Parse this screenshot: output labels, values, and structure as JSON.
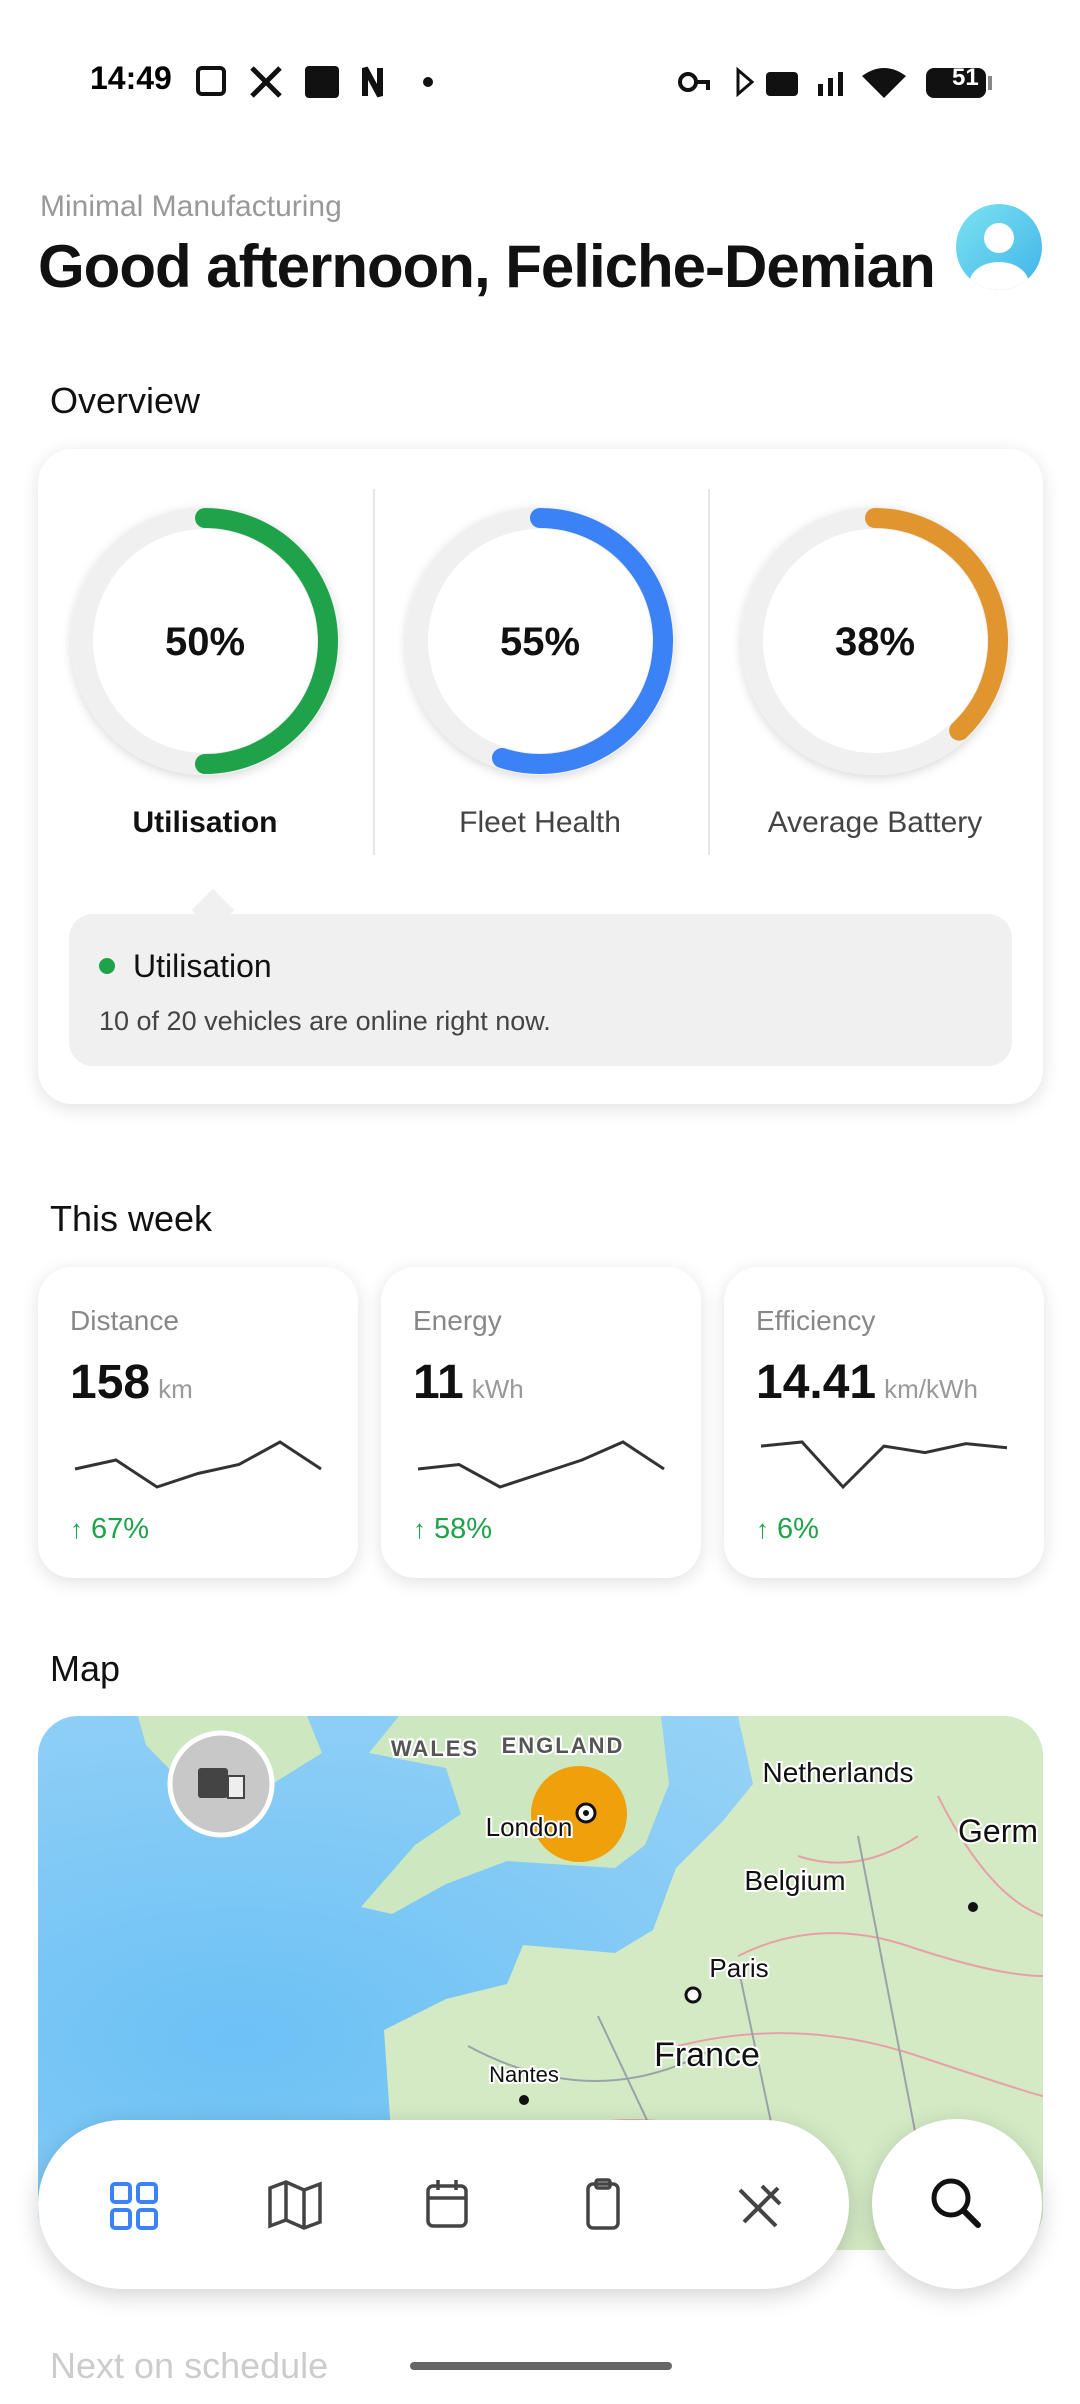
{
  "status_bar": {
    "time": "14:49",
    "battery": "51"
  },
  "header": {
    "org": "Minimal Manufacturing",
    "greeting": "Good afternoon, Feliche-Demian"
  },
  "overview": {
    "title": "Overview",
    "gauges": [
      {
        "value": 50,
        "label": "50%",
        "name": "Utilisation",
        "color": "#1fa34a"
      },
      {
        "value": 55,
        "label": "55%",
        "name": "Fleet Health",
        "color": "#3b82f6"
      },
      {
        "value": 38,
        "label": "38%",
        "name": "Average Battery",
        "color": "#e0952f"
      }
    ],
    "detail": {
      "title": "Utilisation",
      "text": "10 of 20 vehicles are online right now."
    }
  },
  "this_week": {
    "title": "This week",
    "cards": [
      {
        "label": "Distance",
        "value": "158",
        "unit": "km",
        "trend": [
          3,
          4,
          1,
          2.5,
          3.5,
          6,
          3
        ],
        "change": "67%"
      },
      {
        "label": "Energy",
        "value": "11",
        "unit": "kWh",
        "trend": [
          3,
          3.5,
          1,
          2.5,
          4,
          6,
          3
        ],
        "change": "58%"
      },
      {
        "label": "Efficiency",
        "value": "14.41",
        "unit": "km/kWh",
        "trend": [
          5,
          5.5,
          0,
          5,
          4.2,
          5.3,
          4.8
        ],
        "change": "6%"
      }
    ]
  },
  "map": {
    "title": "Map",
    "labels": [
      "WALES",
      "ENGLAND",
      "London",
      "Netherlands",
      "Belgium",
      "Paris",
      "France",
      "Nantes",
      "Germ"
    ]
  },
  "schedule_title": "Next on schedule"
}
